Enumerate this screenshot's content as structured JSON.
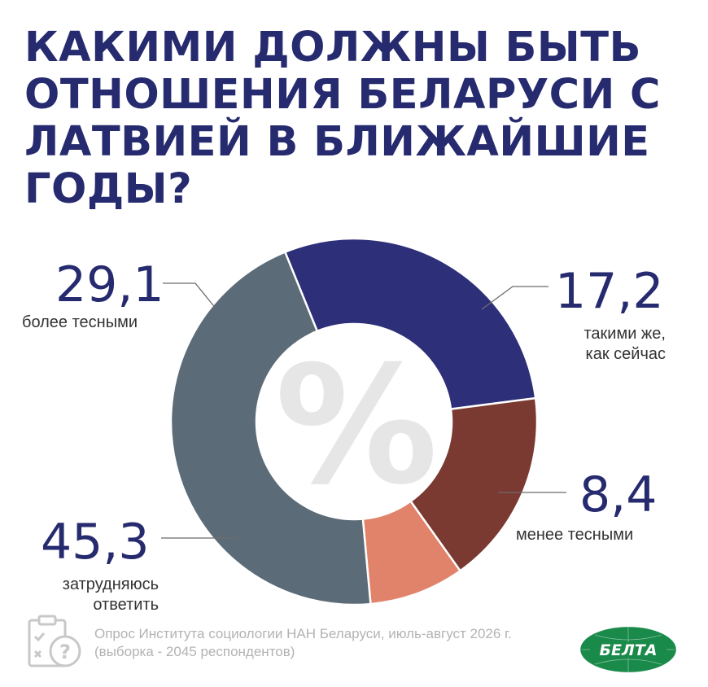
{
  "title_lines": [
    "КАКИМИ ДОЛЖНЫ БЫТЬ",
    "ОТНОШЕНИЯ БЕЛАРУСИ С",
    "ЛАТВИЕЙ В БЛИЖАЙШИЕ",
    "ГОДЫ?"
  ],
  "center_symbol": "%",
  "labels": {
    "closer_value": "29,1",
    "closer_label": "более тесными",
    "same_value": "17,2",
    "same_label_1": "такими же,",
    "same_label_2": "как сейчас",
    "less_value": "8,4",
    "less_label": "менее тесными",
    "hard_value": "45,3",
    "hard_label_1": "затрудняюсь",
    "hard_label_2": "ответить"
  },
  "footer": {
    "line1": "Опрос Института социологии НАН Беларуси, июль-август 2026 г.",
    "line2": "(выборка - 2045 респондентов)"
  },
  "logo_text": "БЕЛТА",
  "colors": {
    "title": "#262a6e",
    "closer": "#2d2f78",
    "same": "#7a3a31",
    "less": "#e1826a",
    "hard": "#5c6b78",
    "logo": "#1a8a4a"
  },
  "chart_data": {
    "type": "pie",
    "variant": "donut",
    "title": "КАКИМИ ДОЛЖНЫ БЫТЬ ОТНОШЕНИЯ БЕЛАРУСИ С ЛАТВИЕЙ В БЛИЖАЙШИЕ ГОДЫ?",
    "unit": "%",
    "categories": [
      "более тесными",
      "такими же, как сейчас",
      "менее тесными",
      "затрудняюсь ответить"
    ],
    "values": [
      29.1,
      17.2,
      8.4,
      45.3
    ]
  }
}
